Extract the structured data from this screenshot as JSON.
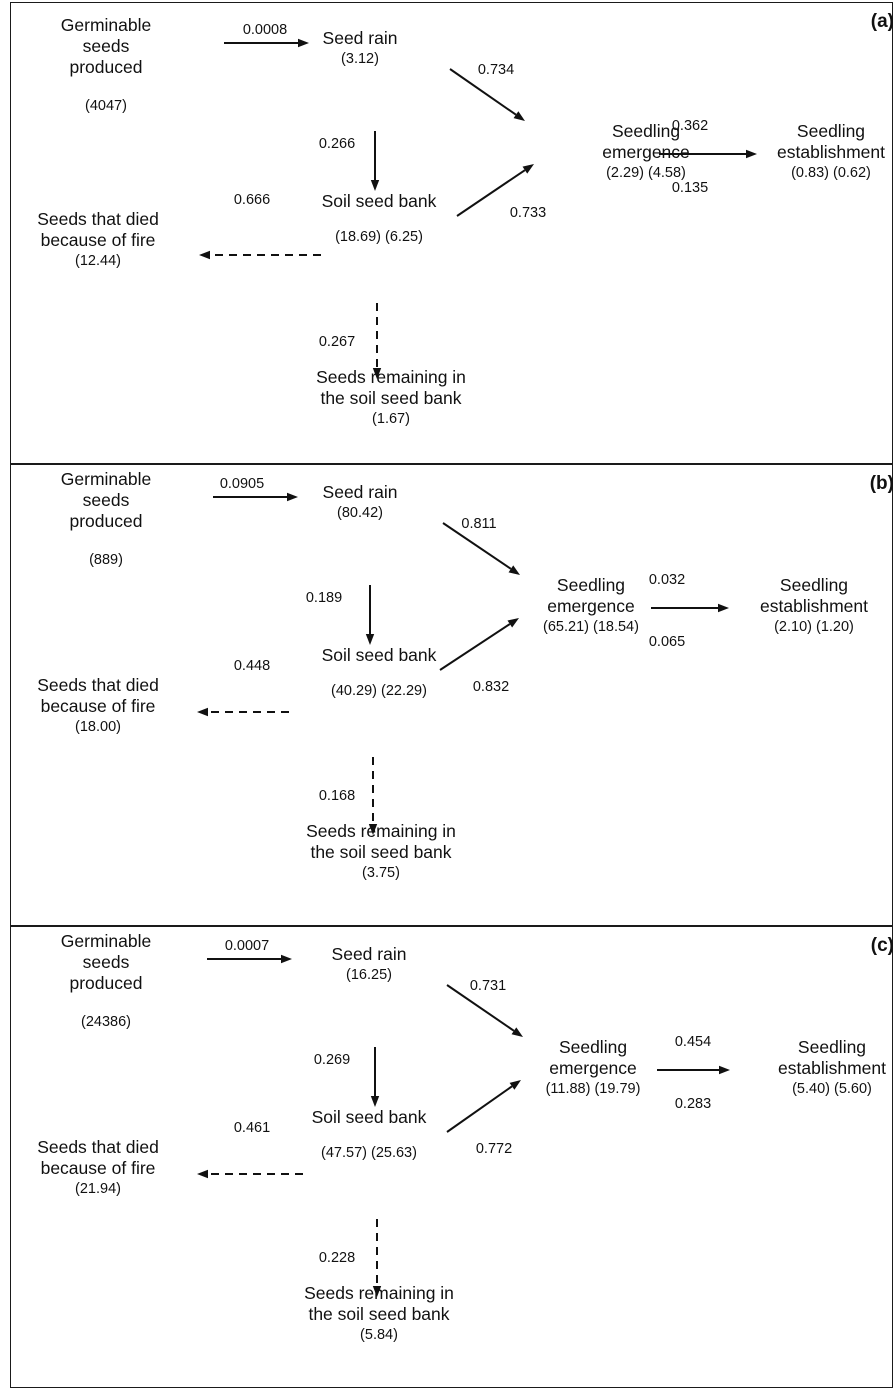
{
  "panels": [
    {
      "label": "(a)",
      "germ": {
        "line1": "Germinable",
        "line2": "seeds",
        "line3": "produced",
        "val": "(4047)"
      },
      "rain": {
        "name": "Seed rain",
        "val": "(3.12)"
      },
      "emergence": {
        "line1": "Seedling",
        "line2": "emergence",
        "val": "(2.29) (4.58)"
      },
      "establishment": {
        "line1": "Seedling",
        "line2": "establishment",
        "val": "(0.83) (0.62)"
      },
      "bank": {
        "name": "Soil seed bank",
        "val": "(18.69) (6.25)"
      },
      "died": {
        "line1": "Seeds that died",
        "line2": "because of fire",
        "val": "(12.44)"
      },
      "remaining": {
        "line1": "Seeds remaining in",
        "line2": "the soil seed bank",
        "val": "(1.67)"
      },
      "rates": {
        "germ_rain": "0.0008",
        "rain_emerg": "0.734",
        "rain_bank": "0.266",
        "emerg_estab_top": "0.362",
        "emerg_estab_bottom": "0.135",
        "bank_emerg": "0.733",
        "bank_died": "0.666",
        "bank_remain": "0.267"
      }
    },
    {
      "label": "(b)",
      "germ": {
        "line1": "Germinable",
        "line2": "seeds",
        "line3": "produced",
        "val": "(889)"
      },
      "rain": {
        "name": "Seed rain",
        "val": "(80.42)"
      },
      "emergence": {
        "line1": "Seedling",
        "line2": "emergence",
        "val": "(65.21) (18.54)"
      },
      "establishment": {
        "line1": "Seedling",
        "line2": "establishment",
        "val": "(2.10) (1.20)"
      },
      "bank": {
        "name": "Soil seed bank",
        "val": "(40.29) (22.29)"
      },
      "died": {
        "line1": "Seeds that died",
        "line2": "because of fire",
        "val": "(18.00)"
      },
      "remaining": {
        "line1": "Seeds remaining in",
        "line2": "the soil seed bank",
        "val": "(3.75)"
      },
      "rates": {
        "germ_rain": "0.0905",
        "rain_emerg": "0.811",
        "rain_bank": "0.189",
        "emerg_estab_top": "0.032",
        "emerg_estab_bottom": "0.065",
        "bank_emerg": "0.832",
        "bank_died": "0.448",
        "bank_remain": "0.168"
      }
    },
    {
      "label": "(c)",
      "germ": {
        "line1": "Germinable",
        "line2": "seeds",
        "line3": "produced",
        "val": "(24386)"
      },
      "rain": {
        "name": "Seed rain",
        "val": "(16.25)"
      },
      "emergence": {
        "line1": "Seedling",
        "line2": "emergence",
        "val": "(11.88) (19.79)"
      },
      "establishment": {
        "line1": "Seedling",
        "line2": "establishment",
        "val": "(5.40) (5.60)"
      },
      "bank": {
        "name": "Soil seed bank",
        "val": "(47.57) (25.63)"
      },
      "died": {
        "line1": "Seeds that died",
        "line2": "because of fire",
        "val": "(21.94)"
      },
      "remaining": {
        "line1": "Seeds remaining in",
        "line2": "the soil seed bank",
        "val": "(5.84)"
      },
      "rates": {
        "germ_rain": "0.0007",
        "rain_emerg": "0.731",
        "rain_bank": "0.269",
        "emerg_estab_top": "0.454",
        "emerg_estab_bottom": "0.283",
        "bank_emerg": "0.772",
        "bank_died": "0.461",
        "bank_remain": "0.228"
      }
    }
  ]
}
